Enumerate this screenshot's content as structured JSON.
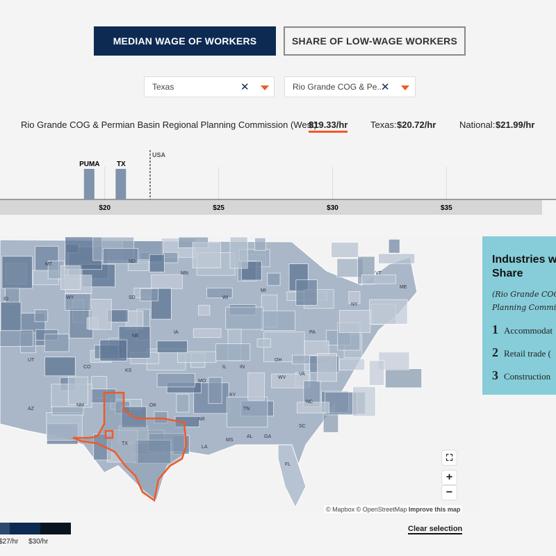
{
  "tabs": [
    {
      "label": "MEDIAN WAGE OF WORKERS",
      "active": true
    },
    {
      "label": "SHARE OF LOW-WAGE WORKERS",
      "active": false
    }
  ],
  "filters": {
    "state": "Texas",
    "region": "Rio Grande COG & Pe..."
  },
  "summary": {
    "region_label": "Rio Grande COG & Permian Basin Regional Planning Commission (West):",
    "region_value": "$19.33/hr",
    "state_label": "Texas:",
    "state_value": "$20.72/hr",
    "national_label": "National:",
    "national_value": "$21.99/hr"
  },
  "chart_data": {
    "type": "bar",
    "categories": [
      "PUMA",
      "TX"
    ],
    "values": [
      19.33,
      20.72
    ],
    "reference": {
      "label": "USA",
      "value": 21.99
    },
    "xticks": [
      "$20",
      "$25",
      "$30",
      "$35"
    ],
    "xtick_values": [
      20,
      25,
      30,
      35
    ],
    "xlim": [
      15.4,
      39.2
    ],
    "bar_color": "#7f93ab"
  },
  "panel": {
    "title": "Industries w",
    "title2": "Share",
    "sub1": "(Rio Grande COG",
    "sub2": "Planning Commi",
    "items": [
      "Accommodat",
      "Retail trade (",
      "Construction"
    ],
    "bg": "#86cdd9"
  },
  "map": {
    "labels": [
      "MT",
      "ND",
      "MN",
      "ID",
      "WY",
      "SD",
      "WI",
      "MI",
      "NE",
      "IA",
      "UT",
      "CO",
      "KS",
      "MO",
      "IL",
      "IN",
      "OH",
      "PA",
      "NY",
      "VT",
      "ME",
      "WV",
      "VA",
      "KY",
      "TN",
      "NC",
      "AZ",
      "NM",
      "OK",
      "AR",
      "MS",
      "AL",
      "GA",
      "SC",
      "TX",
      "LA",
      "FL"
    ],
    "highlight_color": "#f05a28"
  },
  "controls": {
    "fullscreen": "⛶",
    "zoom_in": "+",
    "zoom_out": "−"
  },
  "attribution": {
    "text": "© Mapbox © OpenStreetMap",
    "improve": "Improve this map"
  },
  "legend": {
    "labels": [
      "$27/hr",
      "$30/hr"
    ],
    "colors": [
      "#2c4a6e",
      "#0d2a52",
      "#07141f"
    ]
  },
  "clear": "Clear selection"
}
